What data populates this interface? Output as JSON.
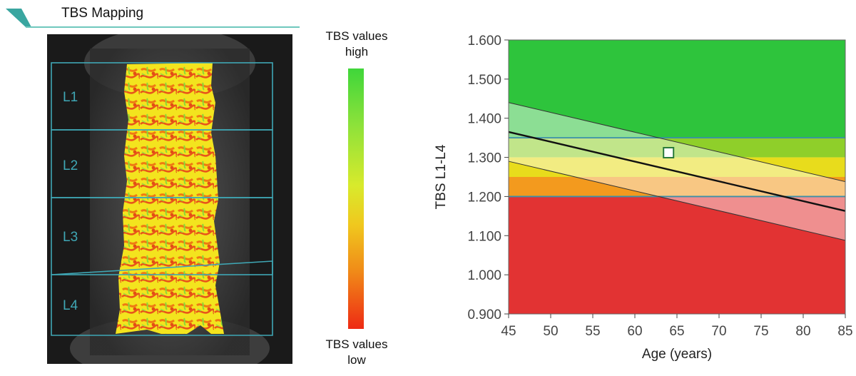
{
  "header": {
    "title": "TBS Mapping"
  },
  "scan": {
    "vertebrae": [
      "L1",
      "L2",
      "L3",
      "L4"
    ]
  },
  "colorbar": {
    "top_label_1": "TBS values",
    "top_label_2": "high",
    "bottom_label_1": "TBS values",
    "bottom_label_2": "low",
    "colors": [
      "#3fd63a",
      "#8ee23a",
      "#d8ea2c",
      "#f0c81e",
      "#f08a18",
      "#ee2a14"
    ]
  },
  "chart_data": {
    "type": "line",
    "title": "",
    "xlabel": "Age (years)",
    "ylabel": "TBS L1-L4",
    "xlim": [
      45,
      85
    ],
    "ylim": [
      0.9,
      1.6
    ],
    "x_ticks": [
      "45",
      "50",
      "55",
      "60",
      "65",
      "70",
      "75",
      "80",
      "85"
    ],
    "y_ticks": [
      "0.900",
      "1.000",
      "1.100",
      "1.200",
      "1.300",
      "1.400",
      "1.500",
      "1.600"
    ],
    "zones": [
      {
        "from": 1.35,
        "to": 1.6,
        "color": "#2ec43c"
      },
      {
        "from": 1.3,
        "to": 1.35,
        "color": "#8fcf2a"
      },
      {
        "from": 1.25,
        "to": 1.3,
        "color": "#e8dc1c"
      },
      {
        "from": 1.2,
        "to": 1.25,
        "color": "#f39a1e"
      },
      {
        "from": 0.9,
        "to": 1.2,
        "color": "#e23333"
      }
    ],
    "thresholds": [
      1.35,
      1.2
    ],
    "series": [
      {
        "role": "mean",
        "x": [
          45,
          85
        ],
        "y": [
          1.365,
          1.163
        ]
      },
      {
        "role": "upper",
        "x": [
          45,
          85
        ],
        "y": [
          1.44,
          1.238
        ]
      },
      {
        "role": "lower",
        "x": [
          45,
          85
        ],
        "y": [
          1.29,
          1.088
        ]
      }
    ],
    "patient_point": {
      "x": 64,
      "y": 1.312
    },
    "colors": {
      "band": "#ffffff",
      "line": "#111111",
      "threshold": "#3c8fa8"
    }
  }
}
